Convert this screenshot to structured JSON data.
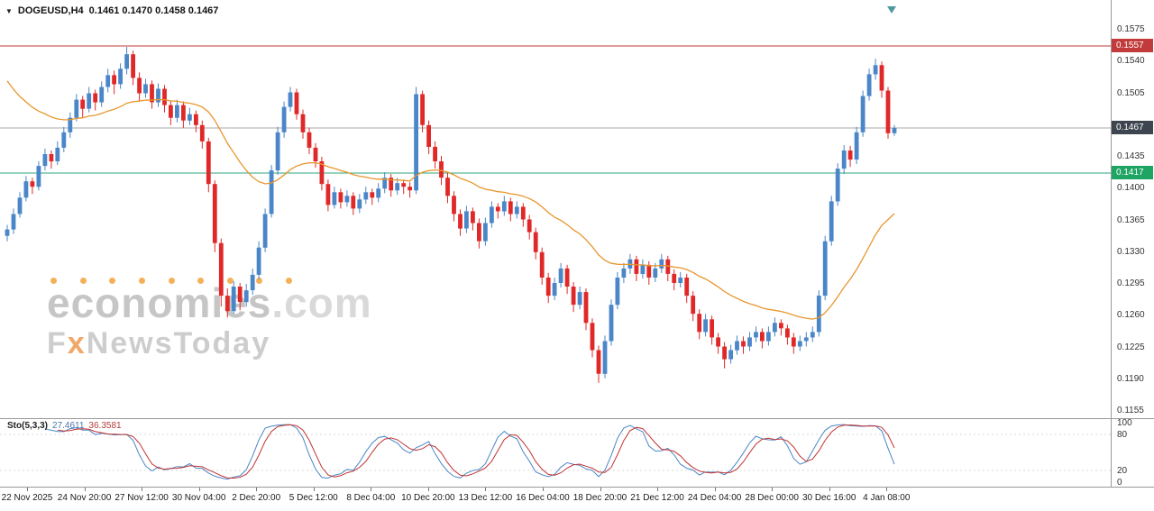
{
  "header": {
    "symbol_timeframe": "DOGEUSD,H4",
    "ohlc": "0.1461 0.1470 0.1458 0.1467"
  },
  "watermark": {
    "brand": "economies",
    "brand_suffix": ".com",
    "sub_pre": "F",
    "sub_x": "x",
    "sub_post": "NewsToday"
  },
  "price_axis": [
    "0.1575",
    "0.1540",
    "0.1505",
    "0.1470",
    "0.1435",
    "0.1400",
    "0.1365",
    "0.1330",
    "0.1295",
    "0.1260",
    "0.1225",
    "0.1190",
    "0.1155"
  ],
  "price_lines": [
    {
      "role": "resistance",
      "value": 0.1557,
      "label": "0.1557",
      "line_color": "#c23b3b",
      "badge_bg": "#c23b3b"
    },
    {
      "role": "current",
      "value": 0.1467,
      "label": "0.1467",
      "line_color": "#aaaaaa",
      "badge_bg": "#3d4650"
    },
    {
      "role": "support",
      "value": 0.1417,
      "label": "0.1417",
      "line_color": "#2fa57c",
      "badge_bg": "#1ea463"
    }
  ],
  "indicator": {
    "label": "Sto(5,3,3)",
    "k_value": "27.4611",
    "d_value": "36.3581",
    "levels": [
      "100",
      "80",
      "20",
      "0"
    ],
    "level_values": [
      100,
      80,
      20,
      0
    ],
    "dashed_levels": [
      80,
      20
    ]
  },
  "time_axis": [
    "22 Nov 2025",
    "24 Nov 20:00",
    "27 Nov 12:00",
    "30 Nov 04:00",
    "2 Dec 20:00",
    "5 Dec 12:00",
    "8 Dec 04:00",
    "10 Dec 20:00",
    "13 Dec 12:00",
    "16 Dec 04:00",
    "18 Dec 20:00",
    "21 Dec 12:00",
    "24 Dec 04:00",
    "28 Dec 00:00",
    "30 Dec 16:00",
    "4 Jan 08:00"
  ],
  "chart_data": {
    "type": "candlestick",
    "title": "DOGEUSD H4",
    "ylim": [
      0.1138,
      0.1592
    ],
    "colors": {
      "up": "#4a86c8",
      "down": "#e02828"
    },
    "ma": {
      "name": "moving-average",
      "method": "ema",
      "period": 30,
      "seed": 0.153,
      "color": "#e8962e"
    },
    "stochastic": {
      "name": "Sto(5,3,3)",
      "k_period": 5,
      "slowing": 3,
      "d_period": 3,
      "k_color": "#4a86c8",
      "d_color": "#c23232",
      "range": [
        0,
        100
      ]
    },
    "candles": [
      [
        0.1348,
        0.136,
        0.1342,
        0.1355
      ],
      [
        0.1355,
        0.1378,
        0.135,
        0.1372
      ],
      [
        0.1372,
        0.1396,
        0.1368,
        0.139
      ],
      [
        0.139,
        0.1414,
        0.1386,
        0.1408
      ],
      [
        0.1408,
        0.1412,
        0.1394,
        0.1402
      ],
      [
        0.1402,
        0.143,
        0.1398,
        0.1425
      ],
      [
        0.1425,
        0.1444,
        0.142,
        0.1438
      ],
      [
        0.1438,
        0.1442,
        0.1422,
        0.143
      ],
      [
        0.143,
        0.1452,
        0.1426,
        0.1445
      ],
      [
        0.1445,
        0.1468,
        0.144,
        0.1462
      ],
      [
        0.1462,
        0.1484,
        0.1456,
        0.1478
      ],
      [
        0.1478,
        0.1504,
        0.1474,
        0.1498
      ],
      [
        0.1498,
        0.1502,
        0.1478,
        0.1488
      ],
      [
        0.1488,
        0.1512,
        0.1484,
        0.1505
      ],
      [
        0.1505,
        0.1509,
        0.1486,
        0.1495
      ],
      [
        0.1495,
        0.1518,
        0.149,
        0.1512
      ],
      [
        0.1512,
        0.1532,
        0.1506,
        0.1525
      ],
      [
        0.1525,
        0.153,
        0.1504,
        0.1515
      ],
      [
        0.1515,
        0.1538,
        0.151,
        0.1532
      ],
      [
        0.1532,
        0.1556,
        0.1526,
        0.1548
      ],
      [
        0.1548,
        0.1552,
        0.1514,
        0.1522
      ],
      [
        0.1522,
        0.1528,
        0.1496,
        0.1505
      ],
      [
        0.1505,
        0.1521,
        0.15,
        0.1515
      ],
      [
        0.1515,
        0.1519,
        0.1488,
        0.1495
      ],
      [
        0.1495,
        0.1516,
        0.149,
        0.151
      ],
      [
        0.151,
        0.1514,
        0.1484,
        0.1492
      ],
      [
        0.1492,
        0.1497,
        0.147,
        0.1478
      ],
      [
        0.1478,
        0.1498,
        0.1473,
        0.1492
      ],
      [
        0.1492,
        0.1496,
        0.1467,
        0.1475
      ],
      [
        0.1475,
        0.1489,
        0.147,
        0.1482
      ],
      [
        0.1482,
        0.1486,
        0.1462,
        0.147
      ],
      [
        0.147,
        0.1475,
        0.1444,
        0.1452
      ],
      [
        0.1452,
        0.1456,
        0.1396,
        0.1405
      ],
      [
        0.1405,
        0.1409,
        0.133,
        0.134
      ],
      [
        0.134,
        0.1345,
        0.127,
        0.1282
      ],
      [
        0.1282,
        0.129,
        0.1258,
        0.1265
      ],
      [
        0.1265,
        0.1298,
        0.1262,
        0.1292
      ],
      [
        0.1292,
        0.1296,
        0.1266,
        0.1275
      ],
      [
        0.1275,
        0.1295,
        0.127,
        0.1288
      ],
      [
        0.1288,
        0.1312,
        0.1283,
        0.1305
      ],
      [
        0.1305,
        0.1342,
        0.13,
        0.1335
      ],
      [
        0.1335,
        0.1378,
        0.133,
        0.1372
      ],
      [
        0.1372,
        0.1426,
        0.1368,
        0.142
      ],
      [
        0.142,
        0.1468,
        0.1415,
        0.1462
      ],
      [
        0.1462,
        0.1496,
        0.1456,
        0.149
      ],
      [
        0.149,
        0.1512,
        0.1485,
        0.1506
      ],
      [
        0.1506,
        0.151,
        0.1476,
        0.1482
      ],
      [
        0.1482,
        0.1487,
        0.1455,
        0.1462
      ],
      [
        0.1462,
        0.1467,
        0.1438,
        0.1445
      ],
      [
        0.1445,
        0.145,
        0.1423,
        0.143
      ],
      [
        0.143,
        0.1435,
        0.1398,
        0.1405
      ],
      [
        0.1405,
        0.141,
        0.1375,
        0.1382
      ],
      [
        0.1382,
        0.1402,
        0.1378,
        0.1396
      ],
      [
        0.1396,
        0.14,
        0.1378,
        0.1385
      ],
      [
        0.1385,
        0.1398,
        0.138,
        0.1392
      ],
      [
        0.1392,
        0.1396,
        0.1371,
        0.1378
      ],
      [
        0.1378,
        0.1394,
        0.1373,
        0.1388
      ],
      [
        0.1388,
        0.1402,
        0.1383,
        0.1396
      ],
      [
        0.1396,
        0.14,
        0.1382,
        0.139
      ],
      [
        0.139,
        0.1406,
        0.1385,
        0.14
      ],
      [
        0.14,
        0.1418,
        0.1395,
        0.1412
      ],
      [
        0.1412,
        0.1416,
        0.1391,
        0.1398
      ],
      [
        0.1398,
        0.1412,
        0.1393,
        0.1406
      ],
      [
        0.1406,
        0.141,
        0.1394,
        0.1402
      ],
      [
        0.1402,
        0.1407,
        0.139,
        0.1398
      ],
      [
        0.1398,
        0.1512,
        0.1394,
        0.1504
      ],
      [
        0.1504,
        0.1508,
        0.1462,
        0.147
      ],
      [
        0.147,
        0.1475,
        0.1438,
        0.1446
      ],
      [
        0.1446,
        0.1452,
        0.1422,
        0.143
      ],
      [
        0.143,
        0.1436,
        0.1404,
        0.1412
      ],
      [
        0.1412,
        0.1417,
        0.1384,
        0.1392
      ],
      [
        0.1392,
        0.1397,
        0.1364,
        0.1372
      ],
      [
        0.1372,
        0.1377,
        0.1348,
        0.1356
      ],
      [
        0.1356,
        0.1381,
        0.1351,
        0.1375
      ],
      [
        0.1375,
        0.1379,
        0.1354,
        0.1362
      ],
      [
        0.1362,
        0.1367,
        0.1334,
        0.1342
      ],
      [
        0.1342,
        0.1368,
        0.1337,
        0.1362
      ],
      [
        0.1362,
        0.1386,
        0.1357,
        0.138
      ],
      [
        0.138,
        0.1384,
        0.1367,
        0.1375
      ],
      [
        0.1375,
        0.1392,
        0.137,
        0.1386
      ],
      [
        0.1386,
        0.139,
        0.1364,
        0.1372
      ],
      [
        0.1372,
        0.1386,
        0.1367,
        0.138
      ],
      [
        0.138,
        0.1384,
        0.1358,
        0.1366
      ],
      [
        0.1366,
        0.1371,
        0.1344,
        0.1352
      ],
      [
        0.1352,
        0.1357,
        0.1322,
        0.133
      ],
      [
        0.133,
        0.1335,
        0.1294,
        0.1302
      ],
      [
        0.1302,
        0.1307,
        0.1274,
        0.1282
      ],
      [
        0.1282,
        0.1302,
        0.1277,
        0.1296
      ],
      [
        0.1296,
        0.1318,
        0.1291,
        0.1312
      ],
      [
        0.1312,
        0.1316,
        0.1284,
        0.1292
      ],
      [
        0.1292,
        0.1297,
        0.1264,
        0.1272
      ],
      [
        0.1272,
        0.1292,
        0.1267,
        0.1286
      ],
      [
        0.1286,
        0.129,
        0.1244,
        0.1252
      ],
      [
        0.1252,
        0.1257,
        0.1214,
        0.1222
      ],
      [
        0.1222,
        0.1227,
        0.1186,
        0.1196
      ],
      [
        0.1196,
        0.1238,
        0.1191,
        0.1232
      ],
      [
        0.1232,
        0.1278,
        0.1227,
        0.1272
      ],
      [
        0.1272,
        0.1308,
        0.1267,
        0.1302
      ],
      [
        0.1302,
        0.1318,
        0.1296,
        0.1312
      ],
      [
        0.1312,
        0.1328,
        0.1306,
        0.1322
      ],
      [
        0.1322,
        0.1326,
        0.1298,
        0.1306
      ],
      [
        0.1306,
        0.1322,
        0.1301,
        0.1316
      ],
      [
        0.1316,
        0.132,
        0.1294,
        0.1302
      ],
      [
        0.1302,
        0.1318,
        0.1297,
        0.1312
      ],
      [
        0.1312,
        0.1328,
        0.1307,
        0.1322
      ],
      [
        0.1322,
        0.1326,
        0.1298,
        0.1306
      ],
      [
        0.1306,
        0.1311,
        0.1288,
        0.1296
      ],
      [
        0.1296,
        0.1308,
        0.1291,
        0.1302
      ],
      [
        0.1302,
        0.1306,
        0.1274,
        0.1282
      ],
      [
        0.1282,
        0.1287,
        0.1254,
        0.1262
      ],
      [
        0.1262,
        0.1267,
        0.1234,
        0.1242
      ],
      [
        0.1242,
        0.1262,
        0.1237,
        0.1256
      ],
      [
        0.1256,
        0.126,
        0.1228,
        0.1236
      ],
      [
        0.1236,
        0.1241,
        0.1218,
        0.1226
      ],
      [
        0.1226,
        0.1231,
        0.1202,
        0.1212
      ],
      [
        0.1212,
        0.1228,
        0.1207,
        0.1222
      ],
      [
        0.1222,
        0.1238,
        0.1217,
        0.1232
      ],
      [
        0.1232,
        0.1237,
        0.1218,
        0.1226
      ],
      [
        0.1226,
        0.1242,
        0.1221,
        0.1236
      ],
      [
        0.1236,
        0.1248,
        0.1231,
        0.1242
      ],
      [
        0.1242,
        0.1246,
        0.1224,
        0.1232
      ],
      [
        0.1232,
        0.1248,
        0.1227,
        0.1242
      ],
      [
        0.1242,
        0.1258,
        0.1237,
        0.1252
      ],
      [
        0.1252,
        0.1256,
        0.1238,
        0.1246
      ],
      [
        0.1246,
        0.125,
        0.1228,
        0.1236
      ],
      [
        0.1236,
        0.1241,
        0.1218,
        0.1226
      ],
      [
        0.1226,
        0.1238,
        0.1221,
        0.1232
      ],
      [
        0.1232,
        0.1242,
        0.1226,
        0.1236
      ],
      [
        0.1236,
        0.1248,
        0.1231,
        0.1242
      ],
      [
        0.1242,
        0.1288,
        0.1237,
        0.1282
      ],
      [
        0.1282,
        0.1348,
        0.1277,
        0.1342
      ],
      [
        0.1342,
        0.1392,
        0.1337,
        0.1386
      ],
      [
        0.1386,
        0.1428,
        0.1381,
        0.1422
      ],
      [
        0.1422,
        0.1448,
        0.1416,
        0.1442
      ],
      [
        0.1442,
        0.1447,
        0.1424,
        0.1432
      ],
      [
        0.1432,
        0.1468,
        0.1427,
        0.1462
      ],
      [
        0.1462,
        0.1508,
        0.1457,
        0.1502
      ],
      [
        0.1502,
        0.1532,
        0.1497,
        0.1526
      ],
      [
        0.1526,
        0.1543,
        0.152,
        0.1536
      ],
      [
        0.1536,
        0.154,
        0.15,
        0.1508
      ],
      [
        0.1508,
        0.1512,
        0.1455,
        0.1461
      ],
      [
        0.1461,
        0.147,
        0.1458,
        0.1467
      ]
    ]
  }
}
